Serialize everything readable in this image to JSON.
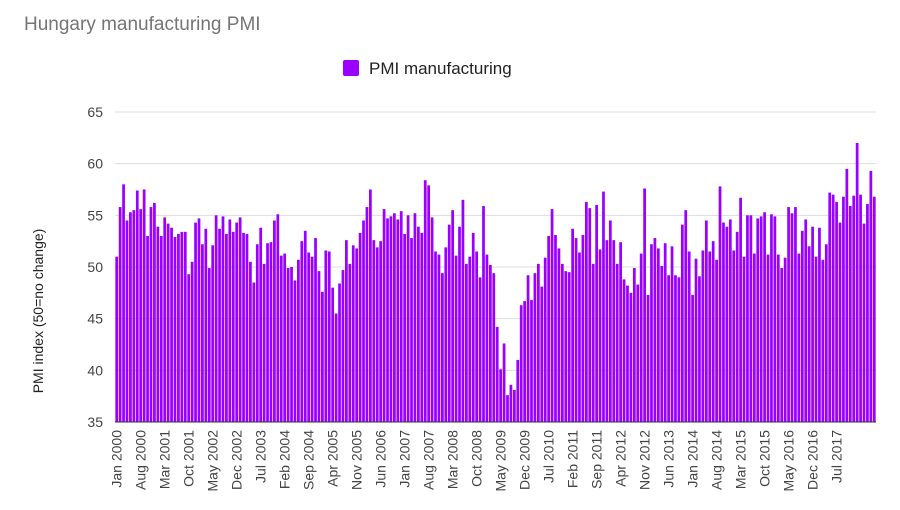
{
  "chart_data": {
    "type": "bar",
    "title": "Hungary manufacturing PMI",
    "ylabel": "PMI index (50=no change)",
    "xlabel": "",
    "ylim": [
      35,
      65
    ],
    "yticks": [
      35,
      40,
      45,
      50,
      55,
      60,
      65
    ],
    "grid": true,
    "legend": {
      "position": "top-center",
      "entries": [
        "PMI manufacturing"
      ]
    },
    "series": [
      {
        "name": "PMI manufacturing",
        "color": "#9900ff",
        "start": "Jan 2000",
        "values": [
          51.0,
          55.8,
          58.0,
          54.5,
          55.3,
          55.5,
          57.4,
          55.6,
          57.5,
          53.0,
          55.8,
          56.2,
          53.9,
          53.0,
          54.8,
          54.2,
          53.8,
          52.9,
          53.2,
          53.4,
          53.4,
          49.3,
          50.5,
          54.3,
          54.7,
          52.2,
          53.7,
          49.9,
          52.1,
          55.0,
          53.7,
          54.9,
          53.2,
          54.6,
          53.4,
          54.3,
          54.8,
          53.3,
          53.2,
          50.5,
          48.5,
          52.2,
          53.8,
          50.3,
          52.3,
          52.4,
          54.5,
          55.1,
          51.1,
          51.3,
          49.9,
          50.0,
          48.7,
          50.7,
          52.5,
          53.5,
          51.4,
          51.0,
          52.8,
          49.6,
          47.6,
          51.6,
          51.5,
          48.0,
          45.5,
          48.4,
          49.7,
          52.6,
          50.3,
          52.1,
          51.8,
          53.3,
          54.5,
          55.8,
          57.5,
          52.6,
          51.9,
          52.5,
          55.6,
          54.7,
          54.9,
          55.2,
          54.6,
          55.4,
          53.2,
          55.0,
          52.8,
          55.2,
          53.9,
          53.3,
          58.4,
          57.9,
          54.8,
          51.5,
          51.2,
          49.4,
          51.9,
          54.1,
          55.5,
          51.1,
          53.9,
          56.5,
          50.3,
          51.0,
          53.3,
          51.5,
          49.0,
          55.9,
          51.2,
          50.2,
          49.4,
          44.2,
          40.1,
          42.6,
          37.6,
          38.6,
          38.1,
          41.0,
          46.3,
          46.7,
          49.2,
          46.8,
          49.4,
          50.3,
          48.1,
          50.9,
          53.0,
          55.6,
          53.1,
          51.8,
          50.3,
          49.6,
          49.5,
          53.7,
          52.8,
          51.4,
          53.1,
          56.3,
          55.7,
          50.3,
          56.0,
          51.7,
          57.3,
          52.6,
          54.5,
          52.6,
          50.3,
          52.4,
          48.8,
          48.2,
          47.5,
          49.9,
          48.3,
          51.3,
          57.6,
          47.3,
          52.2,
          52.8,
          51.8,
          50.1,
          52.3,
          49.2,
          52.0,
          49.2,
          49.0,
          54.1,
          55.5,
          51.5,
          47.3,
          50.8,
          49.1,
          51.6,
          54.5,
          51.5,
          52.5,
          50.7,
          57.8,
          54.3,
          53.9,
          54.6,
          51.6,
          53.4,
          56.7,
          51.0,
          55.0,
          55.0,
          51.3,
          54.7,
          54.9,
          55.3,
          51.2,
          55.1,
          54.9,
          51.2,
          49.9,
          50.9,
          55.8,
          55.2,
          55.8,
          51.3,
          53.5,
          54.6,
          52.0,
          53.9,
          51.0,
          53.8,
          50.7,
          52.2,
          57.2,
          57.0,
          56.3,
          54.3,
          56.8,
          59.5,
          55.9,
          56.9,
          62.0,
          57.0,
          54.2,
          56.1,
          59.3,
          56.8
        ]
      }
    ],
    "categories_labels": [
      "Jan 2000",
      "Aug 2000",
      "Mar 2001",
      "Oct 2001",
      "May 2002",
      "Dec 2002",
      "Jul 2003",
      "Feb 2004",
      "Sep 2004",
      "Apr 2005",
      "Nov 2005",
      "Jun 2006",
      "Jan 2007",
      "Aug 2007",
      "Mar 2008",
      "Oct 2008",
      "May 2009",
      "Dec 2009",
      "Jul 2010",
      "Feb 2011",
      "Sep 2011",
      "Apr 2012",
      "Nov 2012",
      "Jun 2013",
      "Jan 2014",
      "Aug 2014",
      "Mar 2015",
      "Oct 2015",
      "May 2016",
      "Dec 2016",
      "Jul 2017"
    ]
  }
}
